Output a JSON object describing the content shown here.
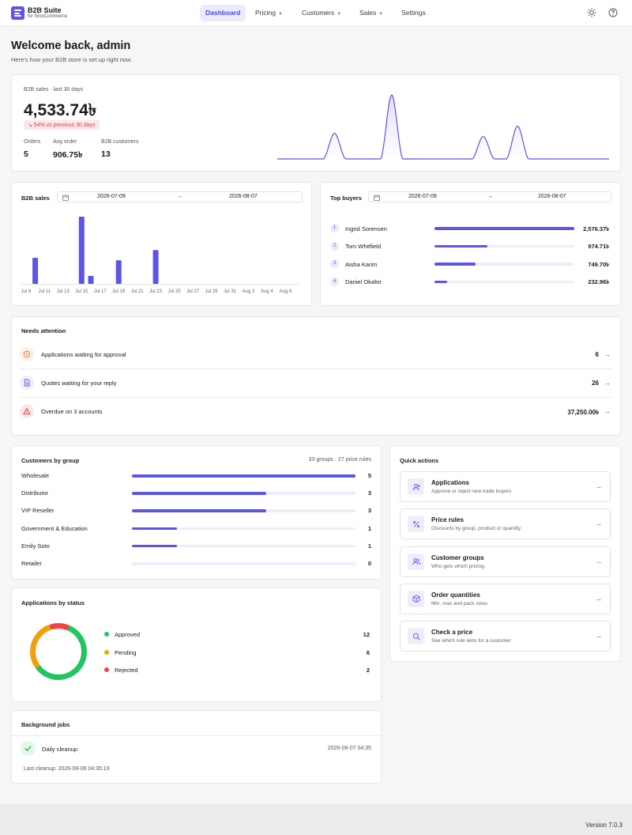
{
  "brand": {
    "title": "B2B Suite",
    "subtitle": "for WooCommerce"
  },
  "nav": {
    "dashboard": "Dashboard",
    "pricing": "Pricing",
    "customers": "Customers",
    "sales": "Sales",
    "settings": "Settings"
  },
  "page": {
    "title": "Welcome back, admin",
    "subtitle": "Here's how your B2B store is set up right now."
  },
  "summary": {
    "label": "B2B sales · last 30 days",
    "amount": "4,533.74৳",
    "change": "↘ 54% vs previous 30 days",
    "stats": [
      {
        "label": "Orders",
        "value": "5"
      },
      {
        "label": "Avg order",
        "value": "906.75৳"
      },
      {
        "label": "B2B customers",
        "value": "13"
      }
    ],
    "sparkline": [
      0,
      0,
      0,
      0,
      0,
      32,
      0,
      0,
      0,
      0,
      80,
      0,
      0,
      0,
      0,
      0,
      0,
      0,
      28,
      0,
      0,
      41,
      0,
      0,
      0,
      0,
      0,
      0,
      0,
      0
    ]
  },
  "sales_chart": {
    "title": "B2B sales",
    "date_from": "2026-07-09",
    "date_to": "2026-08-07",
    "range_arrow": "→",
    "chart_data": {
      "type": "bar",
      "x_labels": [
        "Jul 9",
        "Jul 11",
        "Jul 13",
        "Jul 15",
        "Jul 17",
        "Jul 19",
        "Jul 21",
        "Jul 23",
        "Jul 25",
        "Jul 27",
        "Jul 29",
        "Jul 31",
        "Aug 2",
        "Aug 4",
        "Aug 6"
      ],
      "categories": [
        "Jul 9",
        "Jul 10",
        "Jul 11",
        "Jul 12",
        "Jul 13",
        "Jul 14",
        "Jul 15",
        "Jul 16",
        "Jul 17",
        "Jul 18",
        "Jul 19",
        "Jul 20",
        "Jul 21",
        "Jul 22",
        "Jul 23",
        "Jul 24",
        "Jul 25",
        "Jul 26",
        "Jul 27",
        "Jul 28",
        "Jul 29",
        "Jul 30",
        "Jul 31",
        "Aug 1",
        "Aug 2",
        "Aug 3",
        "Aug 4",
        "Aug 5",
        "Aug 6",
        "Aug 7"
      ],
      "values": [
        0,
        750,
        0,
        0,
        0,
        0,
        1930,
        230,
        0,
        0,
        680,
        0,
        0,
        0,
        970,
        0,
        0,
        0,
        0,
        0,
        0,
        0,
        0,
        0,
        0,
        0,
        0,
        0,
        0,
        0
      ],
      "ylim": [
        0,
        1930
      ],
      "color": "#5b55e8"
    }
  },
  "top_buyers": {
    "title": "Top buyers",
    "date_from": "2026-07-09",
    "date_to": "2026-08-07",
    "range_arrow": "→",
    "items": [
      {
        "rank": "1",
        "name": "Ingrid Sorensen",
        "amount": "2,576.37৳",
        "share": 1.0
      },
      {
        "rank": "2",
        "name": "Tom Whitfield",
        "amount": "974.71৳",
        "share": 0.378
      },
      {
        "rank": "3",
        "name": "Aisha Karim",
        "amount": "749.70৳",
        "share": 0.291
      },
      {
        "rank": "4",
        "name": "Daniel Okafor",
        "amount": "232.96৳",
        "share": 0.09
      }
    ]
  },
  "attention": {
    "title": "Needs attention",
    "items": [
      {
        "label": "Applications waiting for approval",
        "value": "6",
        "icon": "clock-icon",
        "color": "#e8742a",
        "bg": "#fdefe3"
      },
      {
        "label": "Quotes waiting for your reply",
        "value": "26",
        "icon": "document-icon",
        "color": "#5b55e8",
        "bg": "#eeedfb"
      },
      {
        "label": "Overdue on 3 accounts",
        "value": "37,250.00৳",
        "icon": "warning-icon",
        "color": "#e0393e",
        "bg": "#fde8e8"
      }
    ],
    "arrow": "→"
  },
  "groups": {
    "title": "Customers by group",
    "meta": "33 groups · 27 price rules",
    "items": [
      {
        "name": "Wholesale",
        "count": "5",
        "share": 1.0
      },
      {
        "name": "Distributor",
        "count": "3",
        "share": 0.6
      },
      {
        "name": "VIP Reseller",
        "count": "3",
        "share": 0.6
      },
      {
        "name": "Government & Education",
        "count": "1",
        "share": 0.2
      },
      {
        "name": "Emily Soto",
        "count": "1",
        "share": 0.2
      },
      {
        "name": "Retailer",
        "count": "0",
        "share": 0.0
      }
    ]
  },
  "applications": {
    "title": "Applications by status",
    "items": [
      {
        "label": "Approved",
        "value": 12,
        "color": "#22c55e"
      },
      {
        "label": "Pending",
        "value": 6,
        "color": "#f59e0b"
      },
      {
        "label": "Rejected",
        "value": 2,
        "color": "#ef4444"
      }
    ]
  },
  "jobs": {
    "title": "Background jobs",
    "job_name": "Daily cleanup",
    "job_time": "2026-08-07 04:35",
    "last_run": "Last cleanup: 2026-08-06 04:35:19"
  },
  "quick_actions": {
    "title": "Quick actions",
    "items": [
      {
        "title": "Applications",
        "sub": "Approve or reject new trade buyers",
        "icon": "user-plus-icon"
      },
      {
        "title": "Price rules",
        "sub": "Discounts by group, product or quantity",
        "icon": "percent-icon"
      },
      {
        "title": "Customer groups",
        "sub": "Who gets which pricing",
        "icon": "users-icon"
      },
      {
        "title": "Order quantities",
        "sub": "Min, max and pack sizes",
        "icon": "box-icon"
      },
      {
        "title": "Check a price",
        "sub": "See which rule wins for a customer",
        "icon": "search-icon"
      }
    ],
    "arrow": "→"
  },
  "footer": {
    "version": "Version 7.0.3"
  }
}
